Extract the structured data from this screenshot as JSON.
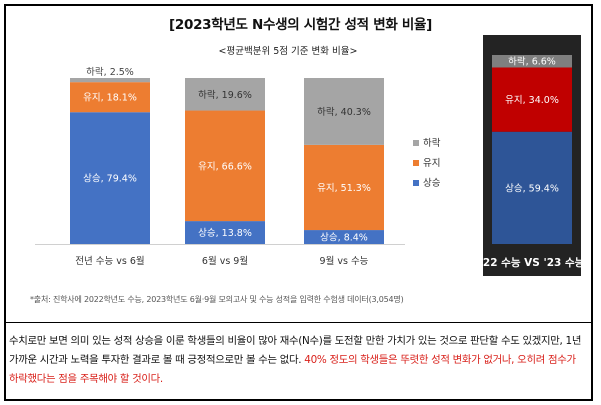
{
  "title": "[2023학년도 N수생의 시험간 성적 변화 비율]",
  "note_parts": [
    "수치로만 보면 의미 있는 성적 상승을 이룬 학생들의 비율이 많아 재수(N수)를 도전할 만한 가치가 있는 것으로 판단할 수도 있겠지만, 1년 가까운 시간과 노력을 투자한 결과로 볼 때 긍정적으로만 볼 수는 없다. ",
    "40% 정도의 학생들은 뚜렷한 성적 변화가 없거나, 오히려 점수가 하락했다는 점을 주목해야 할 것이다."
  ],
  "colors": {
    "rise": "#4472c4",
    "keep": "#ed7d31",
    "fall": "#a5a5a5",
    "rise_dark": "#2e5597",
    "keep_dark": "#c00000",
    "fall_dark": "#7f7f7f",
    "panel": "#232323"
  },
  "chart_data": [
    {
      "type": "bar",
      "stacked": true,
      "subtitle": "<평균백분위 5점 기준 변화 비율>",
      "categories": [
        "전년 수능 vs 6월",
        "6월 vs 9월",
        "9월 vs 수능"
      ],
      "series": [
        {
          "name": "상승",
          "values": [
            79.4,
            13.8,
            8.4
          ]
        },
        {
          "name": "유지",
          "values": [
            18.1,
            66.6,
            51.3
          ]
        },
        {
          "name": "하락",
          "values": [
            2.5,
            19.6,
            40.3
          ]
        }
      ],
      "legend": [
        "하락",
        "유지",
        "상승"
      ],
      "legend_position": "right",
      "ylim": [
        0,
        100
      ],
      "source": "*출처: 진학사에 2022학년도 수능, 2023학년도 6월·9월 모의고사 및 수능 성적을 입력한 수험생 데이터(3,054명)"
    },
    {
      "type": "bar",
      "stacked": true,
      "categories": [
        "'22 수능 VS '23 수능"
      ],
      "series": [
        {
          "name": "상승",
          "values": [
            59.4
          ]
        },
        {
          "name": "유지",
          "values": [
            34.0
          ]
        },
        {
          "name": "하락",
          "values": [
            6.6
          ]
        }
      ],
      "ylim": [
        0,
        100
      ]
    }
  ]
}
